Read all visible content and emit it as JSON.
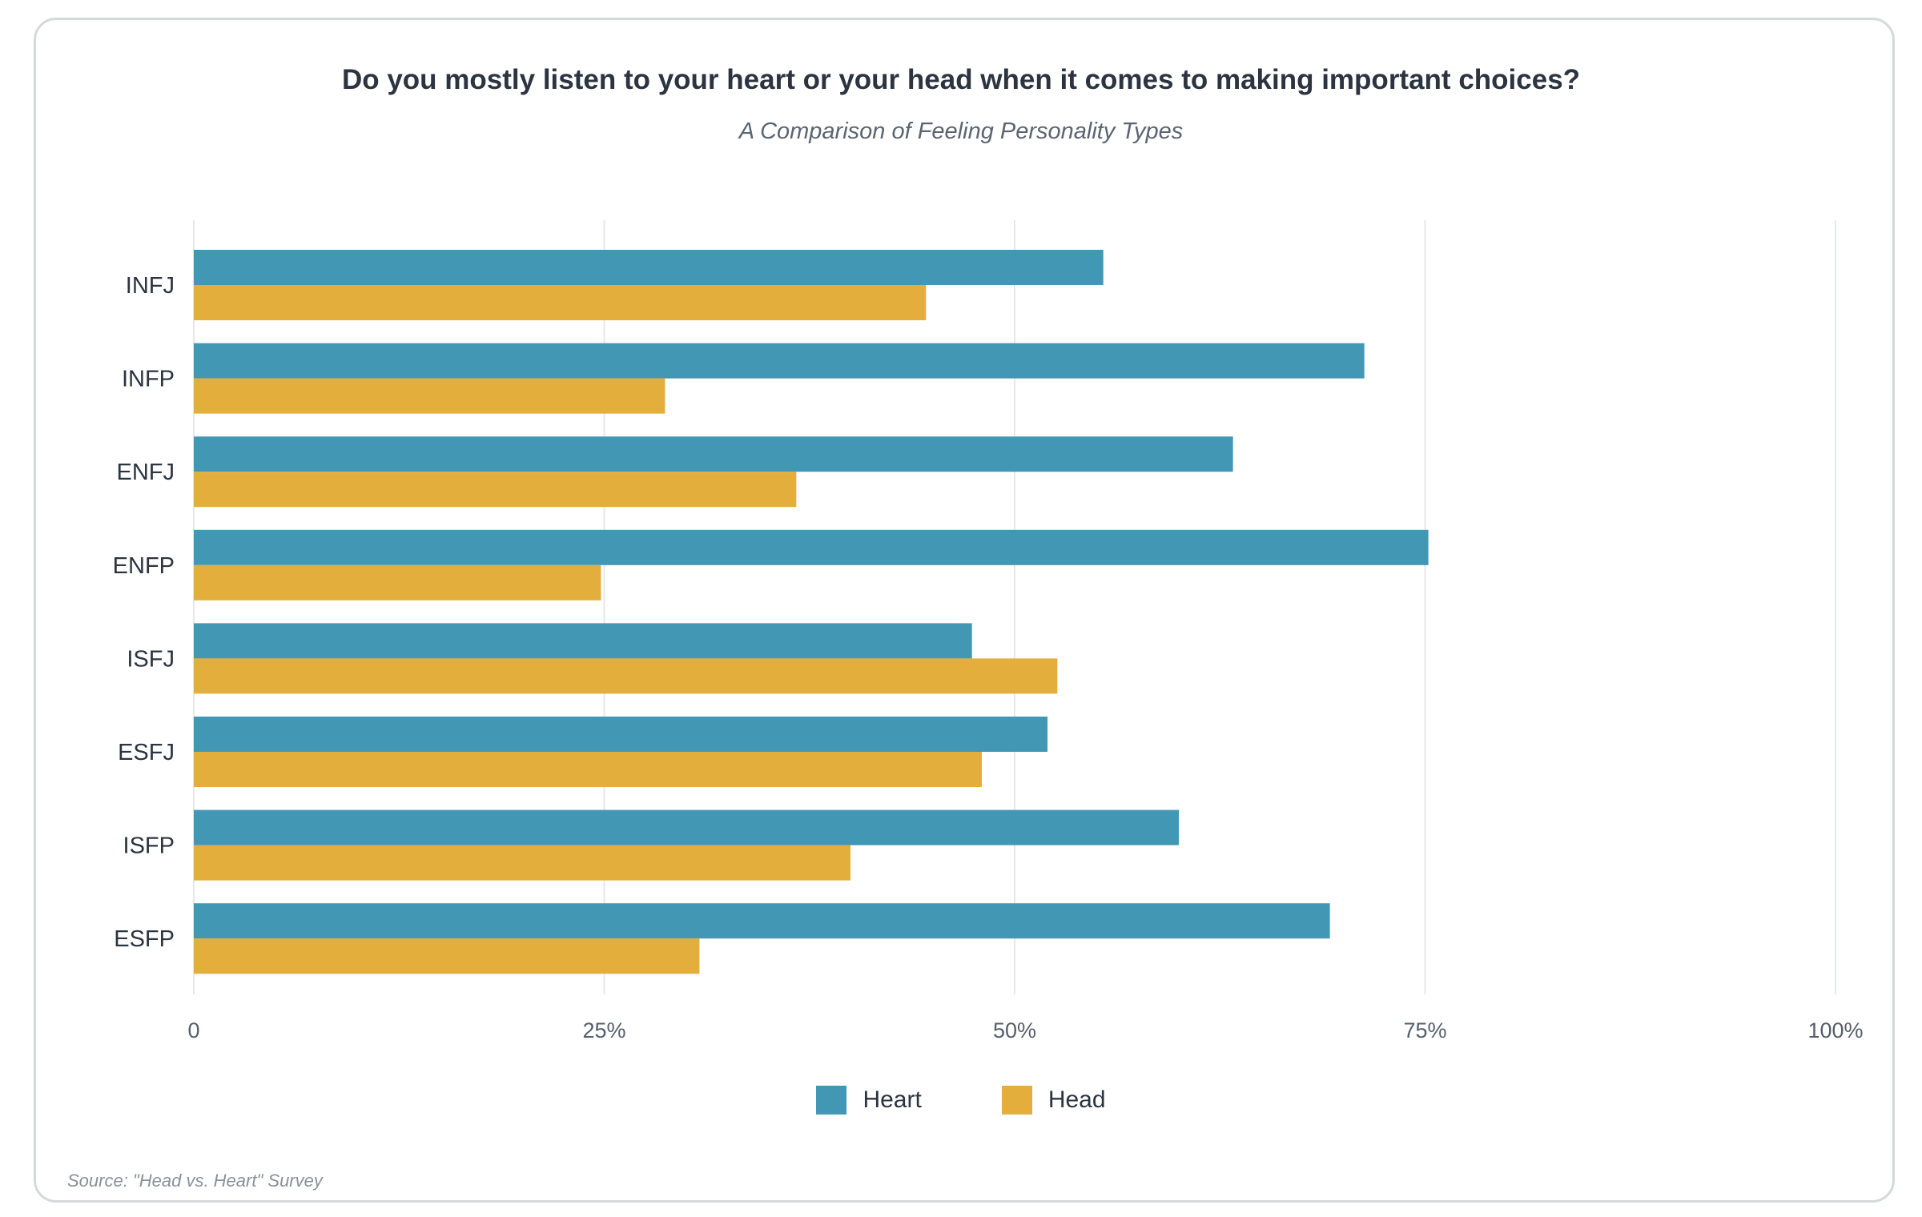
{
  "title": "Do you mostly listen to your heart or your head when it comes to making important choices?",
  "subtitle": "A Comparison of Feeling Personality Types",
  "source": "Source: \"Head vs. Heart\" Survey",
  "colors": {
    "heart": "#4297b5",
    "head": "#e3ae3b",
    "grid": "#e6e8ea"
  },
  "chart_data": {
    "type": "bar",
    "orientation": "horizontal",
    "categories": [
      "INFJ",
      "INFP",
      "ENFJ",
      "ENFP",
      "ISFJ",
      "ESFJ",
      "ISFP",
      "ESFP"
    ],
    "series": [
      {
        "name": "Heart",
        "values": [
          55.4,
          71.3,
          63.3,
          75.2,
          47.4,
          52.0,
          60.0,
          69.2
        ]
      },
      {
        "name": "Head",
        "values": [
          44.6,
          28.7,
          36.7,
          24.8,
          52.6,
          48.0,
          40.0,
          30.8
        ]
      }
    ],
    "xlim": [
      0,
      100
    ],
    "x_ticks": [
      0,
      25,
      50,
      75,
      100
    ],
    "x_tick_labels": [
      "0",
      "25%",
      "50%",
      "75%",
      "100%"
    ],
    "grid": true,
    "legend_position": "bottom-center"
  }
}
